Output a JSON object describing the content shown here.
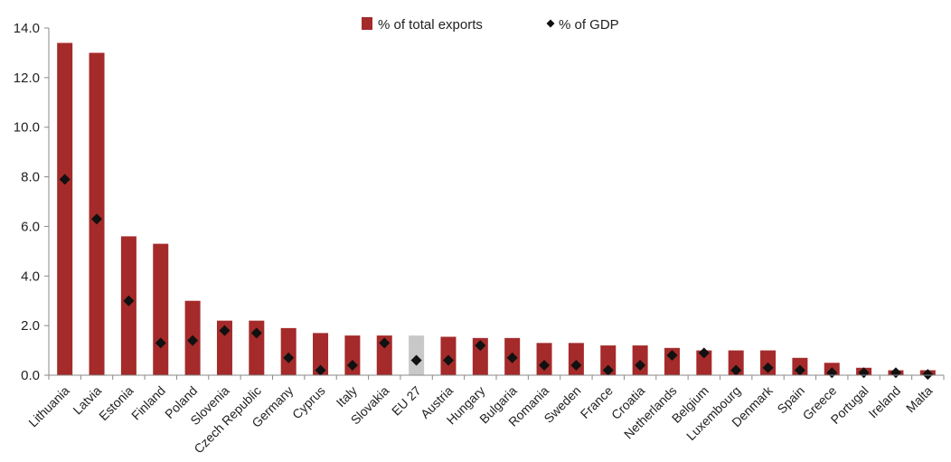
{
  "chart_data": {
    "type": "bar",
    "ylim": [
      0,
      14
    ],
    "yticks": [
      "0.0",
      "2.0",
      "4.0",
      "6.0",
      "8.0",
      "10.0",
      "12.0",
      "14.0"
    ],
    "grid": false,
    "legend_position": "top-center",
    "categories": [
      "Lithuania",
      "Latvia",
      "Estonia",
      "Finland",
      "Poland",
      "Slovenia",
      "Czech Republic",
      "Germany",
      "Cyprus",
      "Italy",
      "Slovakia",
      "EU 27",
      "Austria",
      "Hungary",
      "Bulgaria",
      "Romania",
      "Sweden",
      "France",
      "Croatia",
      "Netherlands",
      "Belgium",
      "Luxembourg",
      "Denmark",
      "Spain",
      "Greece",
      "Portugal",
      "Ireland",
      "Malta"
    ],
    "series": [
      {
        "name": "% of total exports",
        "kind": "bar",
        "color": "#a52a2a",
        "highlight": {
          "category": "EU 27",
          "color": "#c8c8c8"
        },
        "values": [
          13.4,
          13.0,
          5.6,
          5.3,
          3.0,
          2.2,
          2.2,
          1.9,
          1.7,
          1.6,
          1.6,
          1.6,
          1.55,
          1.5,
          1.5,
          1.3,
          1.3,
          1.2,
          1.2,
          1.1,
          1.0,
          1.0,
          1.0,
          0.7,
          0.5,
          0.3,
          0.2,
          0.2
        ]
      },
      {
        "name": "% of GDP",
        "kind": "marker",
        "color": "#111111",
        "marker": "diamond",
        "values": [
          7.9,
          6.3,
          3.0,
          1.3,
          1.4,
          1.8,
          1.7,
          0.7,
          0.2,
          0.4,
          1.3,
          0.6,
          0.6,
          1.2,
          0.7,
          0.4,
          0.4,
          0.2,
          0.4,
          0.8,
          0.9,
          0.2,
          0.3,
          0.2,
          0.1,
          0.1,
          0.1,
          0.03
        ]
      }
    ]
  }
}
